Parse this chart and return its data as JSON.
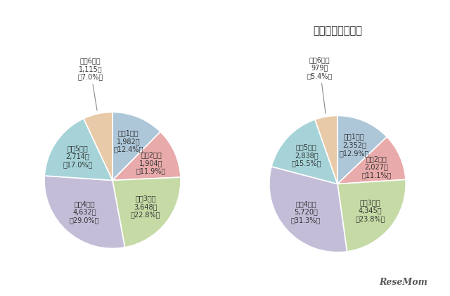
{
  "chart1": {
    "values": [
      1982,
      1904,
      3648,
      4632,
      2714,
      1115
    ],
    "labels": [
      "小剤1年生",
      "小剤2年生",
      "小剤3年生",
      "小剤4年生",
      "小剤5年生",
      "小剤6年生"
    ],
    "counts": [
      "1,982人",
      "1,904人",
      "3,648人",
      "4,632人",
      "2,714人",
      "1,115人"
    ],
    "pcts": [
      "（12.4%）",
      "（11.9%）",
      "（22.8%）",
      "（29.0%）",
      "（17.0%）",
      "（7.0%）"
    ],
    "colors": [
      "#adc7d9",
      "#e8aaaa",
      "#c5daa5",
      "#c4bdd8",
      "#a5d3d8",
      "#e8c9a8"
    ]
  },
  "chart2": {
    "title": "（参考）令和元年",
    "values": [
      2352,
      2027,
      4345,
      5720,
      2838,
      979
    ],
    "labels": [
      "小剤1年生",
      "小剤2年生",
      "小剤3年生",
      "小剤4年生",
      "小剤5年生",
      "小剤6年生"
    ],
    "counts": [
      "2,352人",
      "2,027人",
      "4,345人",
      "5,720人",
      "2,838人",
      "979人"
    ],
    "pcts": [
      "（12.9%）",
      "（11.1%）",
      "（23.8%）",
      "（31.3%）",
      "（15.5%）",
      "（5.4%）"
    ],
    "colors": [
      "#adc7d9",
      "#e8aaaa",
      "#c5daa5",
      "#c4bdd8",
      "#a5d3d8",
      "#e8c9a8"
    ]
  },
  "background_color": "#ffffff",
  "text_color": "#333333",
  "font_size_label": 7.0,
  "font_size_title": 10.5,
  "resemom_text": "ReseMom"
}
